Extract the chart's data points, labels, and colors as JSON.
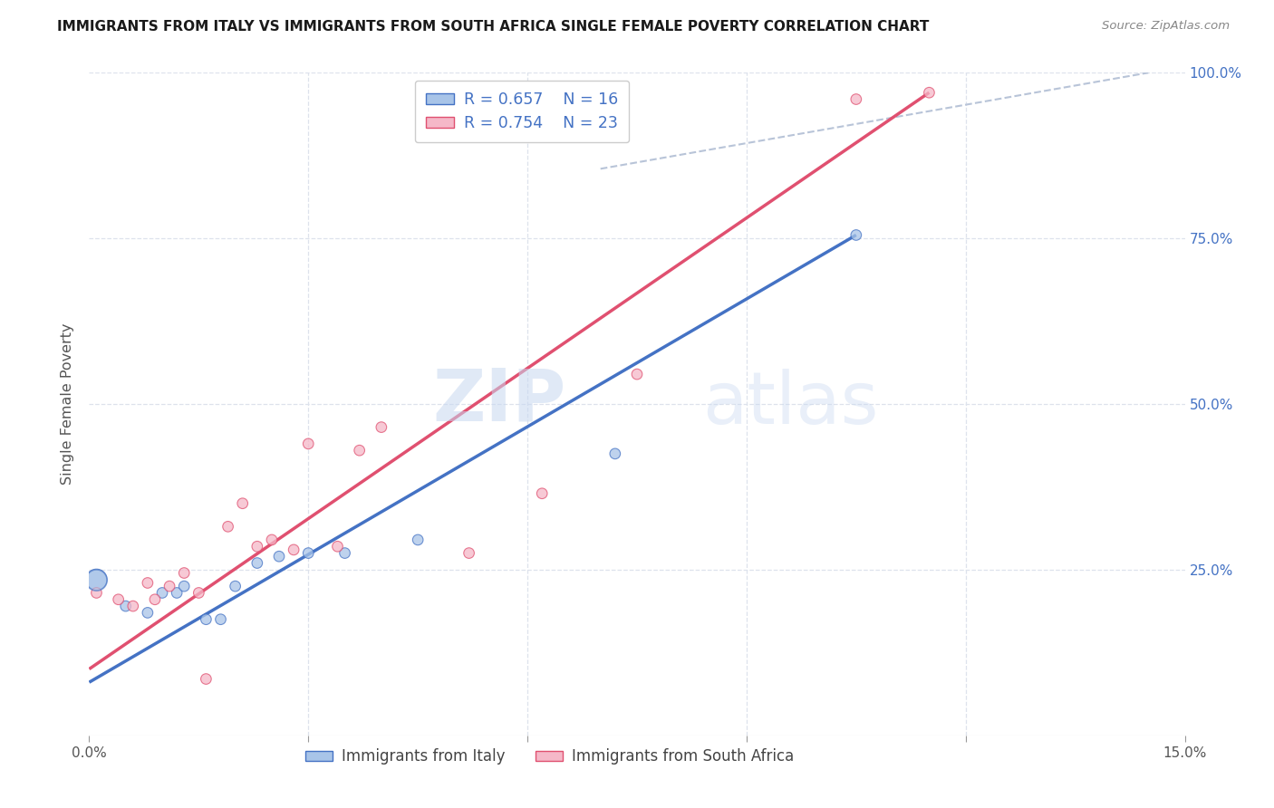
{
  "title": "IMMIGRANTS FROM ITALY VS IMMIGRANTS FROM SOUTH AFRICA SINGLE FEMALE POVERTY CORRELATION CHART",
  "source": "Source: ZipAtlas.com",
  "ylabel": "Single Female Poverty",
  "legend_italy": "Immigrants from Italy",
  "legend_sa": "Immigrants from South Africa",
  "r_italy": "0.657",
  "n_italy": "16",
  "r_sa": "0.754",
  "n_sa": "23",
  "xlim": [
    0.0,
    0.15
  ],
  "ylim": [
    0.0,
    1.0
  ],
  "color_italy": "#a8c4e8",
  "color_sa": "#f5b8c8",
  "color_italy_line": "#4472c4",
  "color_sa_line": "#e05070",
  "color_ref_line": "#b8c4d8",
  "italy_x": [
    0.001,
    0.005,
    0.008,
    0.01,
    0.012,
    0.013,
    0.016,
    0.018,
    0.02,
    0.023,
    0.026,
    0.03,
    0.035,
    0.045,
    0.072,
    0.105
  ],
  "italy_y": [
    0.235,
    0.195,
    0.185,
    0.215,
    0.215,
    0.225,
    0.175,
    0.175,
    0.225,
    0.26,
    0.27,
    0.275,
    0.275,
    0.295,
    0.425,
    0.755
  ],
  "italy_size": [
    280,
    70,
    70,
    70,
    70,
    70,
    70,
    70,
    70,
    70,
    70,
    70,
    70,
    70,
    70,
    70
  ],
  "sa_x": [
    0.001,
    0.004,
    0.006,
    0.008,
    0.009,
    0.011,
    0.013,
    0.015,
    0.016,
    0.019,
    0.021,
    0.023,
    0.025,
    0.028,
    0.03,
    0.034,
    0.037,
    0.04,
    0.052,
    0.062,
    0.075,
    0.105,
    0.115
  ],
  "sa_y": [
    0.215,
    0.205,
    0.195,
    0.23,
    0.205,
    0.225,
    0.245,
    0.215,
    0.085,
    0.315,
    0.35,
    0.285,
    0.295,
    0.28,
    0.44,
    0.285,
    0.43,
    0.465,
    0.275,
    0.365,
    0.545,
    0.96,
    0.97
  ],
  "sa_size": [
    70,
    70,
    70,
    70,
    70,
    70,
    70,
    70,
    70,
    70,
    70,
    70,
    70,
    70,
    70,
    70,
    70,
    70,
    70,
    70,
    70,
    70,
    70
  ],
  "italy_line_x": [
    0.0,
    0.105
  ],
  "italy_line_y": [
    0.08,
    0.755
  ],
  "sa_line_x": [
    0.0,
    0.115
  ],
  "sa_line_y": [
    0.1,
    0.97
  ],
  "ref_line_x": [
    0.07,
    0.145
  ],
  "ref_line_y": [
    0.855,
    1.0
  ],
  "watermark_zip": "ZIP",
  "watermark_atlas": "atlas",
  "background_color": "#ffffff",
  "grid_color": "#dde2ec",
  "title_color": "#1a1a1a",
  "source_color": "#888888",
  "ytick_color": "#4472c4",
  "xtick_color": "#555555"
}
